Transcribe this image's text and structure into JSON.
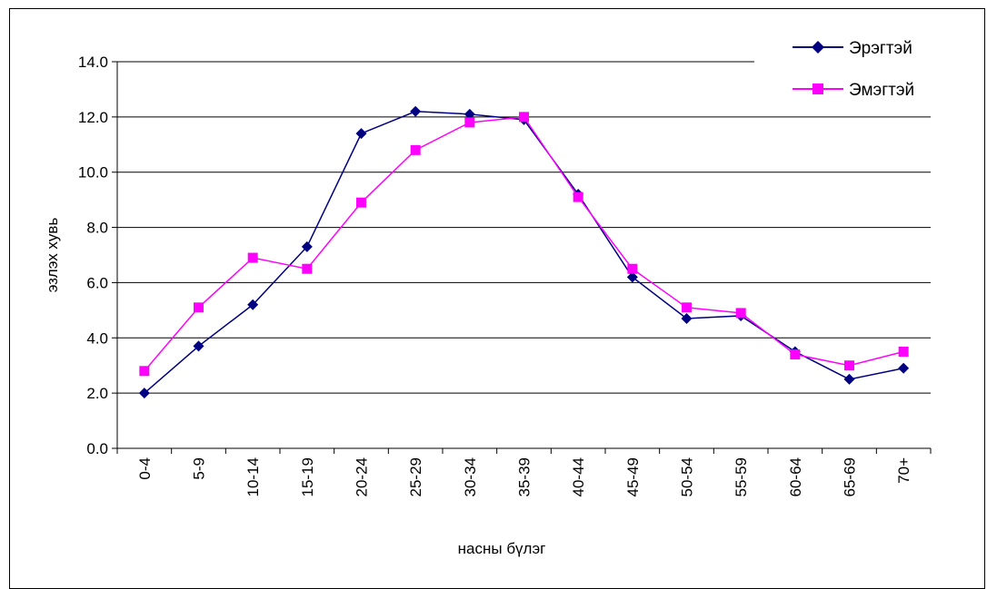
{
  "chart_data": {
    "type": "line",
    "categories": [
      "0-4",
      "5-9",
      "10-14",
      "15-19",
      "20-24",
      "25-29",
      "30-34",
      "35-39",
      "40-44",
      "45-49",
      "50-54",
      "55-59",
      "60-64",
      "65-69",
      "70+"
    ],
    "series": [
      {
        "name": "Эрэгтэй",
        "color": "#000080",
        "marker": "diamond",
        "values": [
          2.0,
          3.7,
          5.2,
          7.3,
          11.4,
          12.2,
          12.1,
          11.9,
          9.2,
          6.2,
          4.7,
          4.8,
          3.5,
          2.5,
          2.9
        ]
      },
      {
        "name": "Эмэгтэй",
        "color": "#ff00ff",
        "marker": "square",
        "values": [
          2.8,
          5.1,
          6.9,
          6.5,
          8.9,
          10.8,
          11.8,
          12.0,
          9.1,
          6.5,
          5.1,
          4.9,
          3.4,
          3.0,
          3.5
        ]
      }
    ],
    "title": "",
    "xlabel": "насны бүлэг",
    "ylabel": "эзлэх хувь",
    "ylim": [
      0,
      14
    ],
    "yticks": [
      "0.0",
      "2.0",
      "4.0",
      "6.0",
      "8.0",
      "10.0",
      "12.0",
      "14.0"
    ],
    "grid": true,
    "legend_position": "top-right"
  }
}
